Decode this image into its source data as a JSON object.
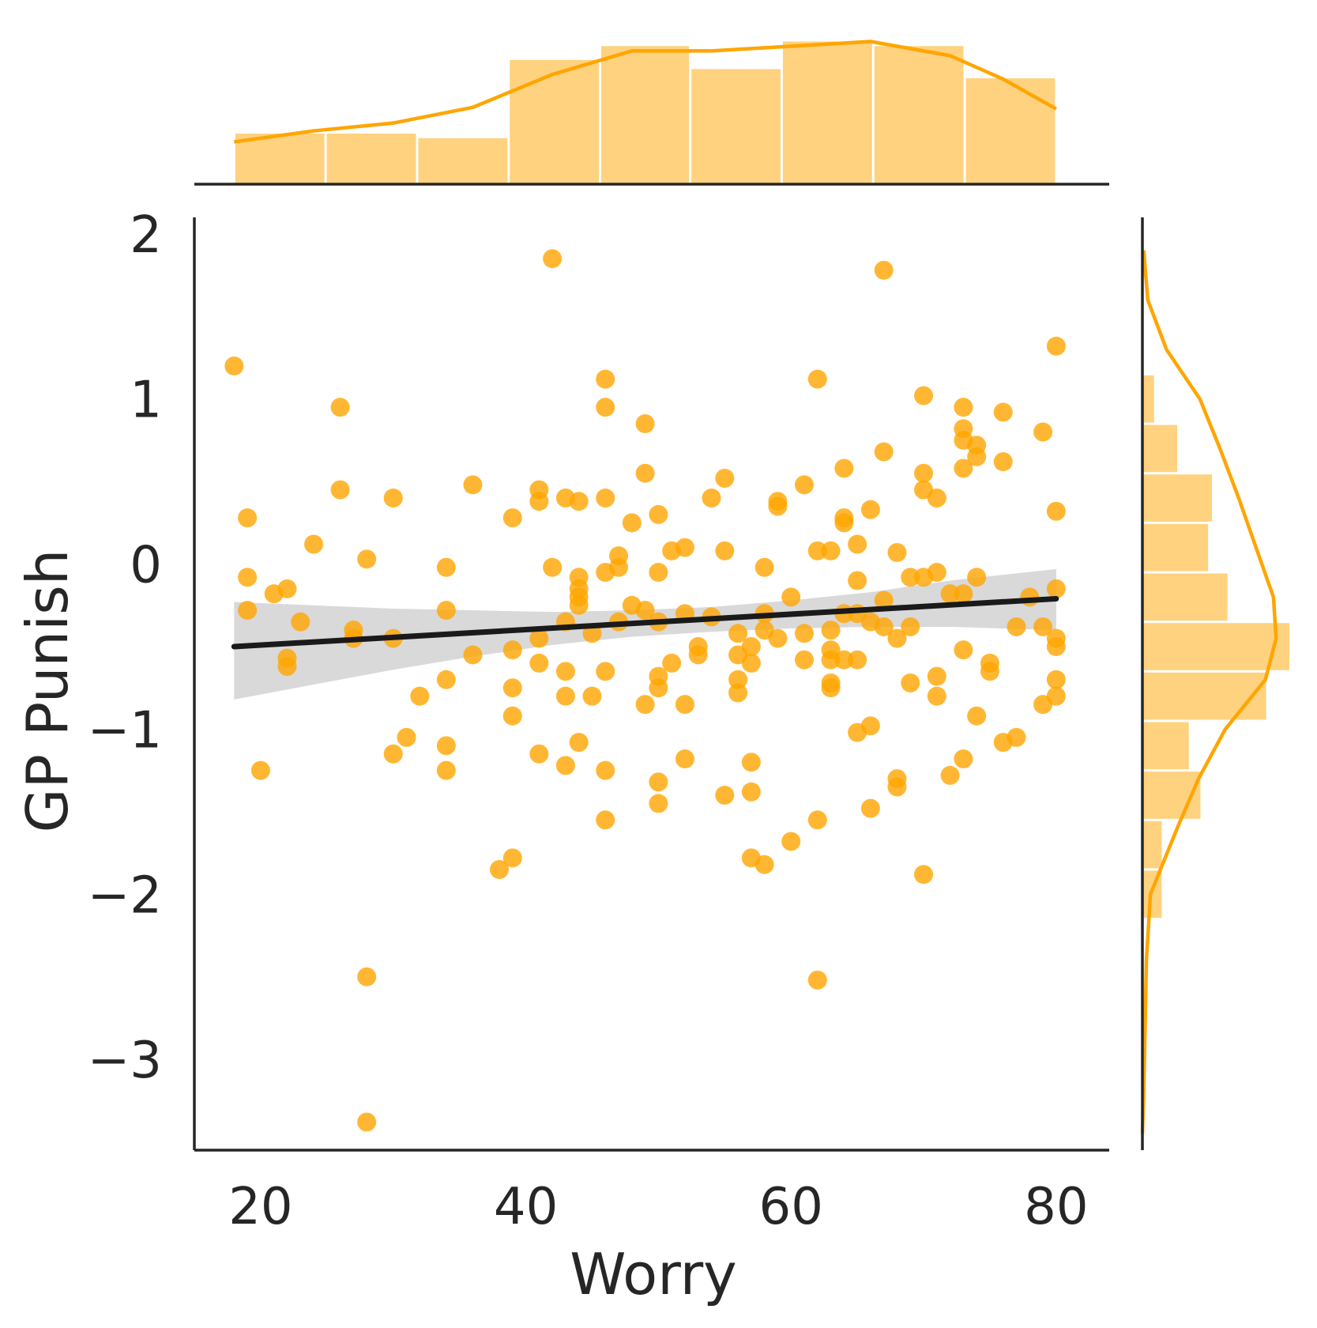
{
  "chart_data": {
    "type": "scatter",
    "xlabel": "Worry",
    "ylabel": "GP Punish",
    "xlim": [
      15,
      84
    ],
    "ylim": [
      -3.55,
      2.1
    ],
    "xticks": [
      20,
      40,
      60,
      80
    ],
    "yticks": [
      -3,
      -2,
      -1,
      0,
      1,
      2
    ],
    "xtick_labels": [
      "20",
      "40",
      "60",
      "80"
    ],
    "ytick_labels": [
      "−3",
      "−2",
      "−1",
      "0",
      "1",
      "2"
    ],
    "grid": false,
    "colors": {
      "points": "#FFA500",
      "hist_fill": "#FFD27F",
      "kde": "#FFA500",
      "regression_line": "#1a1a1a",
      "ci_band": "#d9d9d9",
      "axis": "#262626"
    },
    "points": [
      {
        "x": 18,
        "y": 1.2
      },
      {
        "x": 19,
        "y": 0.28
      },
      {
        "x": 19,
        "y": -0.08
      },
      {
        "x": 19,
        "y": -0.28
      },
      {
        "x": 20,
        "y": -1.25
      },
      {
        "x": 21,
        "y": -0.18
      },
      {
        "x": 22,
        "y": -0.15
      },
      {
        "x": 22,
        "y": -0.57
      },
      {
        "x": 22,
        "y": -0.62
      },
      {
        "x": 23,
        "y": -0.35
      },
      {
        "x": 24,
        "y": 0.12
      },
      {
        "x": 26,
        "y": 0.95
      },
      {
        "x": 26,
        "y": 0.45
      },
      {
        "x": 27,
        "y": -0.4
      },
      {
        "x": 27,
        "y": -0.45
      },
      {
        "x": 28,
        "y": 0.03
      },
      {
        "x": 28,
        "y": -2.5
      },
      {
        "x": 28,
        "y": -3.38
      },
      {
        "x": 30,
        "y": 0.4
      },
      {
        "x": 30,
        "y": -0.45
      },
      {
        "x": 30,
        "y": -1.15
      },
      {
        "x": 31,
        "y": -1.05
      },
      {
        "x": 32,
        "y": -0.8
      },
      {
        "x": 34,
        "y": -0.02
      },
      {
        "x": 34,
        "y": -0.28
      },
      {
        "x": 34,
        "y": -0.7
      },
      {
        "x": 34,
        "y": -1.1
      },
      {
        "x": 34,
        "y": -1.25
      },
      {
        "x": 36,
        "y": 0.48
      },
      {
        "x": 36,
        "y": -0.55
      },
      {
        "x": 38,
        "y": -1.85
      },
      {
        "x": 39,
        "y": 0.28
      },
      {
        "x": 39,
        "y": -0.52
      },
      {
        "x": 39,
        "y": -0.75
      },
      {
        "x": 39,
        "y": -0.92
      },
      {
        "x": 39,
        "y": -1.78
      },
      {
        "x": 41,
        "y": 0.45
      },
      {
        "x": 41,
        "y": 0.38
      },
      {
        "x": 41,
        "y": -0.45
      },
      {
        "x": 41,
        "y": -0.6
      },
      {
        "x": 41,
        "y": -1.15
      },
      {
        "x": 42,
        "y": 1.85
      },
      {
        "x": 42,
        "y": -0.02
      },
      {
        "x": 43,
        "y": 0.4
      },
      {
        "x": 43,
        "y": -0.35
      },
      {
        "x": 43,
        "y": -0.65
      },
      {
        "x": 43,
        "y": -0.8
      },
      {
        "x": 43,
        "y": -1.22
      },
      {
        "x": 44,
        "y": 0.38
      },
      {
        "x": 44,
        "y": -0.08
      },
      {
        "x": 44,
        "y": -0.15
      },
      {
        "x": 44,
        "y": -0.2
      },
      {
        "x": 44,
        "y": -0.25
      },
      {
        "x": 44,
        "y": -1.08
      },
      {
        "x": 45,
        "y": -0.42
      },
      {
        "x": 45,
        "y": -0.8
      },
      {
        "x": 46,
        "y": 1.12
      },
      {
        "x": 46,
        "y": 0.95
      },
      {
        "x": 46,
        "y": 0.4
      },
      {
        "x": 46,
        "y": -0.05
      },
      {
        "x": 46,
        "y": -0.65
      },
      {
        "x": 46,
        "y": -1.25
      },
      {
        "x": 46,
        "y": -1.55
      },
      {
        "x": 47,
        "y": 0.05
      },
      {
        "x": 47,
        "y": -0.02
      },
      {
        "x": 47,
        "y": -0.35
      },
      {
        "x": 48,
        "y": 0.25
      },
      {
        "x": 48,
        "y": -0.25
      },
      {
        "x": 49,
        "y": 0.85
      },
      {
        "x": 49,
        "y": 0.55
      },
      {
        "x": 49,
        "y": -0.28
      },
      {
        "x": 49,
        "y": -0.85
      },
      {
        "x": 50,
        "y": 0.3
      },
      {
        "x": 50,
        "y": -0.05
      },
      {
        "x": 50,
        "y": -0.35
      },
      {
        "x": 50,
        "y": -0.68
      },
      {
        "x": 50,
        "y": -0.75
      },
      {
        "x": 50,
        "y": -1.32
      },
      {
        "x": 50,
        "y": -1.45
      },
      {
        "x": 51,
        "y": 0.08
      },
      {
        "x": 51,
        "y": -0.6
      },
      {
        "x": 52,
        "y": 0.1
      },
      {
        "x": 52,
        "y": -0.3
      },
      {
        "x": 52,
        "y": -0.85
      },
      {
        "x": 52,
        "y": -1.18
      },
      {
        "x": 53,
        "y": -0.5
      },
      {
        "x": 53,
        "y": -0.55
      },
      {
        "x": 54,
        "y": 0.4
      },
      {
        "x": 54,
        "y": -0.32
      },
      {
        "x": 55,
        "y": 0.52
      },
      {
        "x": 55,
        "y": 0.08
      },
      {
        "x": 55,
        "y": -1.4
      },
      {
        "x": 56,
        "y": -0.42
      },
      {
        "x": 56,
        "y": -0.55
      },
      {
        "x": 56,
        "y": -0.7
      },
      {
        "x": 56,
        "y": -0.78
      },
      {
        "x": 57,
        "y": -0.5
      },
      {
        "x": 57,
        "y": -0.6
      },
      {
        "x": 57,
        "y": -1.2
      },
      {
        "x": 57,
        "y": -1.38
      },
      {
        "x": 57,
        "y": -1.78
      },
      {
        "x": 58,
        "y": -0.02
      },
      {
        "x": 58,
        "y": -0.3
      },
      {
        "x": 58,
        "y": -0.4
      },
      {
        "x": 58,
        "y": -1.82
      },
      {
        "x": 59,
        "y": 0.38
      },
      {
        "x": 59,
        "y": 0.35
      },
      {
        "x": 59,
        "y": -0.45
      },
      {
        "x": 60,
        "y": -0.2
      },
      {
        "x": 60,
        "y": -1.68
      },
      {
        "x": 61,
        "y": 0.48
      },
      {
        "x": 61,
        "y": -0.42
      },
      {
        "x": 61,
        "y": -0.58
      },
      {
        "x": 62,
        "y": 1.12
      },
      {
        "x": 62,
        "y": 0.08
      },
      {
        "x": 62,
        "y": -1.55
      },
      {
        "x": 62,
        "y": -2.52
      },
      {
        "x": 63,
        "y": 0.08
      },
      {
        "x": 63,
        "y": -0.4
      },
      {
        "x": 63,
        "y": -0.52
      },
      {
        "x": 63,
        "y": -0.58
      },
      {
        "x": 63,
        "y": -0.72
      },
      {
        "x": 63,
        "y": -0.75
      },
      {
        "x": 64,
        "y": 0.58
      },
      {
        "x": 64,
        "y": 0.28
      },
      {
        "x": 64,
        "y": 0.25
      },
      {
        "x": 64,
        "y": -0.3
      },
      {
        "x": 64,
        "y": -0.58
      },
      {
        "x": 65,
        "y": 0.12
      },
      {
        "x": 65,
        "y": -0.1
      },
      {
        "x": 65,
        "y": -0.3
      },
      {
        "x": 65,
        "y": -0.58
      },
      {
        "x": 65,
        "y": -1.02
      },
      {
        "x": 66,
        "y": 0.33
      },
      {
        "x": 66,
        "y": -0.35
      },
      {
        "x": 66,
        "y": -0.98
      },
      {
        "x": 66,
        "y": -1.48
      },
      {
        "x": 67,
        "y": 1.78
      },
      {
        "x": 67,
        "y": 0.68
      },
      {
        "x": 67,
        "y": -0.22
      },
      {
        "x": 67,
        "y": -0.38
      },
      {
        "x": 68,
        "y": 0.07
      },
      {
        "x": 68,
        "y": -0.45
      },
      {
        "x": 68,
        "y": -1.3
      },
      {
        "x": 68,
        "y": -1.35
      },
      {
        "x": 69,
        "y": -0.08
      },
      {
        "x": 69,
        "y": -0.38
      },
      {
        "x": 69,
        "y": -0.72
      },
      {
        "x": 70,
        "y": 1.02
      },
      {
        "x": 70,
        "y": 0.55
      },
      {
        "x": 70,
        "y": 0.45
      },
      {
        "x": 70,
        "y": -0.08
      },
      {
        "x": 70,
        "y": -1.88
      },
      {
        "x": 71,
        "y": 0.4
      },
      {
        "x": 71,
        "y": -0.05
      },
      {
        "x": 71,
        "y": -0.68
      },
      {
        "x": 71,
        "y": -0.8
      },
      {
        "x": 72,
        "y": -0.18
      },
      {
        "x": 72,
        "y": -1.28
      },
      {
        "x": 73,
        "y": 0.95
      },
      {
        "x": 73,
        "y": 0.82
      },
      {
        "x": 73,
        "y": 0.75
      },
      {
        "x": 73,
        "y": 0.58
      },
      {
        "x": 73,
        "y": -0.18
      },
      {
        "x": 73,
        "y": -0.52
      },
      {
        "x": 73,
        "y": -1.18
      },
      {
        "x": 74,
        "y": 0.72
      },
      {
        "x": 74,
        "y": 0.65
      },
      {
        "x": 74,
        "y": -0.08
      },
      {
        "x": 74,
        "y": -0.92
      },
      {
        "x": 75,
        "y": -0.6
      },
      {
        "x": 75,
        "y": -0.65
      },
      {
        "x": 76,
        "y": 0.92
      },
      {
        "x": 76,
        "y": 0.62
      },
      {
        "x": 76,
        "y": -1.08
      },
      {
        "x": 77,
        "y": -0.38
      },
      {
        "x": 77,
        "y": -1.05
      },
      {
        "x": 78,
        "y": -0.2
      },
      {
        "x": 79,
        "y": 0.8
      },
      {
        "x": 79,
        "y": -0.38
      },
      {
        "x": 79,
        "y": -0.85
      },
      {
        "x": 80,
        "y": 1.32
      },
      {
        "x": 80,
        "y": 0.32
      },
      {
        "x": 80,
        "y": -0.15
      },
      {
        "x": 80,
        "y": -0.45
      },
      {
        "x": 80,
        "y": -0.5
      },
      {
        "x": 80,
        "y": -0.7
      },
      {
        "x": 80,
        "y": -0.8
      }
    ],
    "regression": {
      "x": [
        18,
        80
      ],
      "y": [
        -0.5,
        -0.21
      ]
    },
    "ci_band": {
      "x": [
        18,
        24,
        30,
        36,
        42,
        48,
        54,
        60,
        66,
        72,
        80
      ],
      "upper": [
        -0.23,
        -0.25,
        -0.27,
        -0.28,
        -0.29,
        -0.28,
        -0.26,
        -0.22,
        -0.17,
        -0.1,
        -0.03
      ],
      "lower": [
        -0.82,
        -0.73,
        -0.64,
        -0.56,
        -0.49,
        -0.44,
        -0.41,
        -0.39,
        -0.38,
        -0.38,
        -0.4
      ]
    },
    "x_hist": {
      "bin_edges": [
        18,
        24.9,
        31.8,
        38.7,
        45.6,
        52.4,
        59.3,
        66.2,
        73.1,
        80
      ],
      "counts": [
        11,
        11,
        10,
        27,
        30,
        25,
        31,
        30,
        23
      ]
    },
    "x_kde": {
      "x": [
        18,
        24,
        30,
        36,
        42,
        48,
        54,
        60,
        66,
        72,
        76,
        80
      ],
      "density": [
        0.27,
        0.34,
        0.39,
        0.49,
        0.7,
        0.85,
        0.85,
        0.88,
        0.91,
        0.82,
        0.67,
        0.48
      ]
    },
    "y_hist": {
      "bin_edges": [
        -2.15,
        -1.85,
        -1.55,
        -1.25,
        -0.95,
        -0.65,
        -0.35,
        -0.05,
        0.25,
        0.55,
        0.85,
        1.15
      ],
      "counts": [
        5,
        5,
        15,
        12,
        32,
        38,
        22,
        17,
        18,
        9,
        3
      ]
    },
    "y_kde": {
      "y": [
        1.9,
        1.6,
        1.3,
        1.0,
        0.7,
        0.4,
        0.1,
        -0.2,
        -0.45,
        -0.7,
        -1.0,
        -1.3,
        -1.6,
        -2.0,
        -2.4,
        -2.8,
        -3.2,
        -3.45
      ],
      "density": [
        0.01,
        0.04,
        0.18,
        0.43,
        0.58,
        0.72,
        0.85,
        0.98,
        1.0,
        0.92,
        0.62,
        0.42,
        0.26,
        0.06,
        0.03,
        0.02,
        0.01,
        0.0
      ]
    }
  }
}
